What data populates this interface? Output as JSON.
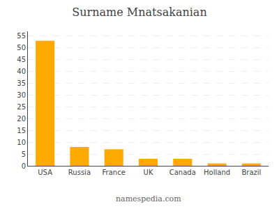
{
  "chart_data": {
    "type": "bar",
    "title": "Surname Mnatsakanian",
    "categories": [
      "USA",
      "Russia",
      "France",
      "UK",
      "Canada",
      "Holland",
      "Brazil"
    ],
    "values": [
      53,
      8,
      7,
      3,
      3,
      1,
      1
    ],
    "color": "#FFAA00",
    "ylim": [
      0,
      57
    ],
    "yticks": [
      0,
      5,
      10,
      15,
      20,
      25,
      30,
      35,
      40,
      45,
      50,
      55
    ],
    "grid": true,
    "annotations": [
      "namespedia.com"
    ]
  }
}
